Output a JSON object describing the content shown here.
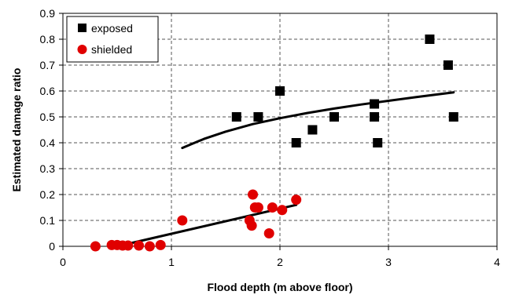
{
  "chart_data": {
    "type": "scatter",
    "xlabel": "Flood depth (m above floor)",
    "ylabel": "Estimated damage ratio",
    "xlim": [
      0,
      4
    ],
    "ylim": [
      0,
      0.9
    ],
    "x_ticks": [
      "0",
      "1",
      "2",
      "3",
      "4"
    ],
    "y_ticks": [
      "0",
      "0.1",
      "0.2",
      "0.3",
      "0.4",
      "0.5",
      "0.6",
      "0.7",
      "0.8",
      "0.9"
    ],
    "grid": {
      "horizontal": "dashed",
      "vertical": "dashed"
    },
    "legend_position": "top-left",
    "series": [
      {
        "name": "exposed",
        "marker": "square",
        "color": "#000000",
        "points": [
          [
            1.6,
            0.5
          ],
          [
            1.8,
            0.5
          ],
          [
            2.0,
            0.6
          ],
          [
            2.15,
            0.4
          ],
          [
            2.3,
            0.45
          ],
          [
            2.5,
            0.5
          ],
          [
            2.87,
            0.55
          ],
          [
            2.87,
            0.5
          ],
          [
            2.9,
            0.4
          ],
          [
            3.38,
            0.8
          ],
          [
            3.55,
            0.7
          ],
          [
            3.6,
            0.5
          ]
        ],
        "trendline": {
          "kind": "curve",
          "points": [
            [
              1.1,
              0.38
            ],
            [
              1.3,
              0.415
            ],
            [
              1.5,
              0.443
            ],
            [
              1.75,
              0.472
            ],
            [
              2.0,
              0.495
            ],
            [
              2.25,
              0.515
            ],
            [
              2.5,
              0.532
            ],
            [
              2.75,
              0.548
            ],
            [
              3.0,
              0.562
            ],
            [
              3.25,
              0.576
            ],
            [
              3.6,
              0.595
            ]
          ]
        }
      },
      {
        "name": "shielded",
        "marker": "circle",
        "color": "#e00000",
        "points": [
          [
            0.3,
            0.0
          ],
          [
            0.45,
            0.005
          ],
          [
            0.5,
            0.005
          ],
          [
            0.55,
            0.003
          ],
          [
            0.6,
            0.003
          ],
          [
            0.7,
            0.003
          ],
          [
            0.8,
            0.0
          ],
          [
            0.9,
            0.005
          ],
          [
            1.1,
            0.1
          ],
          [
            1.72,
            0.1
          ],
          [
            1.74,
            0.08
          ],
          [
            1.75,
            0.2
          ],
          [
            1.77,
            0.15
          ],
          [
            1.8,
            0.15
          ],
          [
            1.9,
            0.05
          ],
          [
            1.93,
            0.15
          ],
          [
            2.02,
            0.14
          ],
          [
            2.15,
            0.18
          ]
        ],
        "trendline": {
          "kind": "line",
          "points": [
            [
              0.5,
              0.0
            ],
            [
              2.15,
              0.16
            ]
          ]
        }
      }
    ]
  }
}
